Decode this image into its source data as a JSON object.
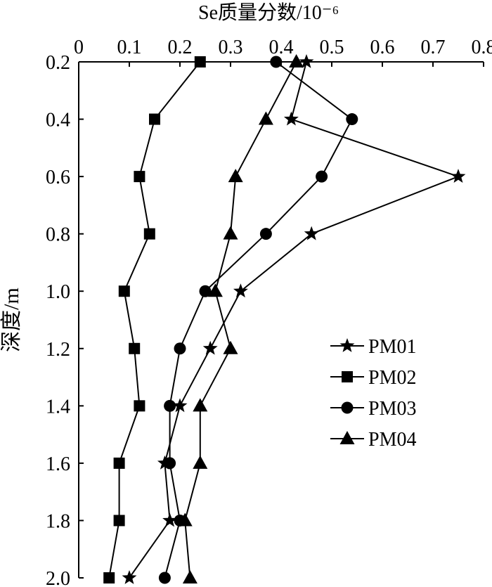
{
  "chart_data": {
    "type": "line",
    "xlabel": "Se质量分数/10⁻⁶",
    "ylabel": "深度/m",
    "x_axis_position": "top",
    "y_axis_inverted": true,
    "xlim": [
      0,
      0.8
    ],
    "ylim": [
      0.2,
      2.0
    ],
    "x_ticks": [
      "0",
      "0.1",
      "0.2",
      "0.3",
      "0.4",
      "0.5",
      "0.6",
      "0.7",
      "0.8"
    ],
    "y_ticks": [
      "0.2",
      "0.4",
      "0.6",
      "0.8",
      "1.0",
      "1.2",
      "1.4",
      "1.6",
      "1.8",
      "2.0"
    ],
    "grid": false,
    "legend_position": "right-middle",
    "series": [
      {
        "name": "PM01",
        "marker": "star",
        "points": [
          [
            0.45,
            0.2
          ],
          [
            0.42,
            0.4
          ],
          [
            0.75,
            0.6
          ],
          [
            0.46,
            0.8
          ],
          [
            0.32,
            1.0
          ],
          [
            0.26,
            1.2
          ],
          [
            0.2,
            1.4
          ],
          [
            0.17,
            1.6
          ],
          [
            0.18,
            1.8
          ],
          [
            0.1,
            2.0
          ]
        ]
      },
      {
        "name": "PM02",
        "marker": "square",
        "points": [
          [
            0.24,
            0.2
          ],
          [
            0.15,
            0.4
          ],
          [
            0.12,
            0.6
          ],
          [
            0.14,
            0.8
          ],
          [
            0.09,
            1.0
          ],
          [
            0.11,
            1.2
          ],
          [
            0.12,
            1.4
          ],
          [
            0.08,
            1.6
          ],
          [
            0.08,
            1.8
          ],
          [
            0.06,
            2.0
          ]
        ]
      },
      {
        "name": "PM03",
        "marker": "circle",
        "points": [
          [
            0.39,
            0.2
          ],
          [
            0.54,
            0.4
          ],
          [
            0.48,
            0.6
          ],
          [
            0.37,
            0.8
          ],
          [
            0.25,
            1.0
          ],
          [
            0.2,
            1.2
          ],
          [
            0.18,
            1.4
          ],
          [
            0.18,
            1.6
          ],
          [
            0.2,
            1.8
          ],
          [
            0.17,
            2.0
          ]
        ]
      },
      {
        "name": "PM04",
        "marker": "triangle",
        "points": [
          [
            0.43,
            0.2
          ],
          [
            0.37,
            0.4
          ],
          [
            0.31,
            0.6
          ],
          [
            0.3,
            0.8
          ],
          [
            0.27,
            1.0
          ],
          [
            0.3,
            1.2
          ],
          [
            0.24,
            1.4
          ],
          [
            0.24,
            1.6
          ],
          [
            0.21,
            1.8
          ],
          [
            0.22,
            2.0
          ]
        ]
      }
    ]
  }
}
